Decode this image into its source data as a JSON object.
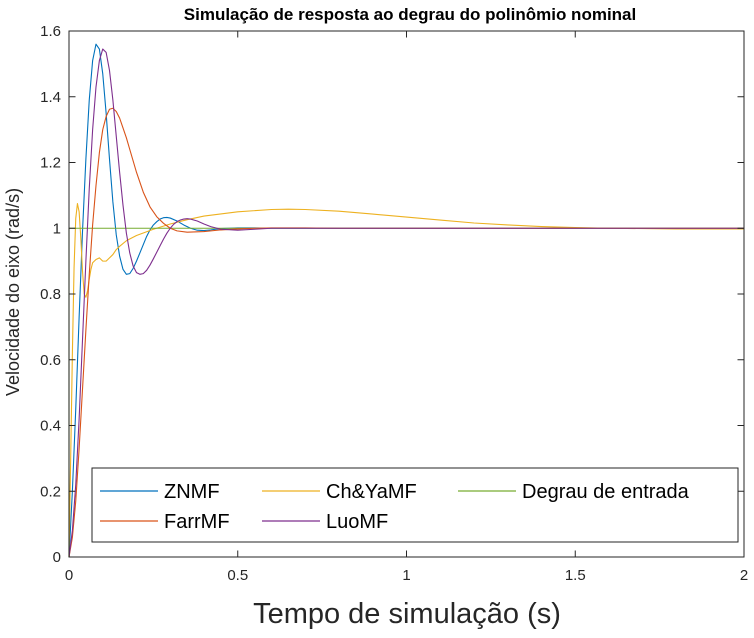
{
  "chart_data": {
    "type": "line",
    "title": "Simulação de resposta ao degrau do polinômio nominal",
    "xlabel": "Tempo de simulação (s)",
    "ylabel": "Velocidade do eixo (rad/s)",
    "xlim": [
      0,
      2
    ],
    "ylim": [
      0,
      1.6
    ],
    "xticks": [
      0,
      0.5,
      1,
      1.5,
      2
    ],
    "xtick_labels": [
      "0",
      "0.5",
      "1",
      "1.5",
      "2"
    ],
    "yticks": [
      0,
      0.2,
      0.4,
      0.6,
      0.8,
      1,
      1.2,
      1.4,
      1.6
    ],
    "ytick_labels": [
      "0",
      "0.2",
      "0.4",
      "0.6",
      "0.8",
      "1",
      "1.2",
      "1.4",
      "1.6"
    ],
    "grid": false,
    "legend_position": "bottom",
    "series": [
      {
        "name": "ZNMF",
        "color": "#0072BD",
        "x": [
          0,
          0.01,
          0.02,
          0.03,
          0.04,
          0.05,
          0.06,
          0.07,
          0.08,
          0.09,
          0.1,
          0.11,
          0.12,
          0.13,
          0.14,
          0.15,
          0.16,
          0.17,
          0.18,
          0.19,
          0.2,
          0.21,
          0.22,
          0.23,
          0.24,
          0.25,
          0.26,
          0.27,
          0.28,
          0.29,
          0.3,
          0.32,
          0.34,
          0.36,
          0.38,
          0.4,
          0.42,
          0.45,
          0.5,
          0.55,
          0.6,
          0.7,
          0.8,
          1.0,
          1.5,
          2.0
        ],
        "y": [
          0,
          0.2,
          0.45,
          0.73,
          0.99,
          1.21,
          1.39,
          1.51,
          1.56,
          1.545,
          1.47,
          1.35,
          1.21,
          1.08,
          0.98,
          0.915,
          0.875,
          0.86,
          0.862,
          0.878,
          0.9,
          0.925,
          0.95,
          0.975,
          0.995,
          1.01,
          1.02,
          1.028,
          1.032,
          1.033,
          1.031,
          1.022,
          1.01,
          1.0,
          0.994,
          0.993,
          0.995,
          0.999,
          1.001,
          1.001,
          1.0,
          1.0,
          1.0,
          1.0,
          1.0,
          1.0
        ]
      },
      {
        "name": "Ch&YaMF",
        "color": "#EDB120",
        "x": [
          0,
          0.005,
          0.01,
          0.015,
          0.02,
          0.025,
          0.03,
          0.035,
          0.04,
          0.045,
          0.05,
          0.055,
          0.06,
          0.065,
          0.07,
          0.08,
          0.09,
          0.1,
          0.11,
          0.12,
          0.13,
          0.14,
          0.15,
          0.17,
          0.2,
          0.25,
          0.3,
          0.35,
          0.4,
          0.5,
          0.6,
          0.65,
          0.7,
          0.8,
          0.9,
          1.0,
          1.1,
          1.2,
          1.3,
          1.4,
          1.5,
          1.6,
          1.8,
          2.0
        ],
        "y": [
          0,
          0.3,
          0.62,
          0.88,
          1.03,
          1.075,
          1.05,
          0.97,
          0.87,
          0.8,
          0.79,
          0.81,
          0.845,
          0.875,
          0.895,
          0.905,
          0.91,
          0.9,
          0.9,
          0.91,
          0.92,
          0.935,
          0.945,
          0.962,
          0.978,
          0.997,
          1.013,
          1.026,
          1.037,
          1.05,
          1.057,
          1.058,
          1.057,
          1.052,
          1.043,
          1.034,
          1.025,
          1.016,
          1.01,
          1.005,
          1.002,
          1.0,
          0.998,
          0.998
        ]
      },
      {
        "name": "Degrau de entrada",
        "color": "#77AC30",
        "x": [
          0,
          0.0,
          2.0
        ],
        "y": [
          0,
          1.0,
          1.0
        ]
      },
      {
        "name": "FarrMF",
        "color": "#D95319",
        "x": [
          0,
          0.01,
          0.02,
          0.03,
          0.04,
          0.05,
          0.06,
          0.07,
          0.08,
          0.09,
          0.1,
          0.11,
          0.12,
          0.13,
          0.14,
          0.15,
          0.16,
          0.17,
          0.18,
          0.19,
          0.2,
          0.22,
          0.24,
          0.26,
          0.28,
          0.3,
          0.32,
          0.35,
          0.4,
          0.45,
          0.5,
          0.55,
          0.6,
          0.7,
          0.8,
          1.0,
          1.5,
          2.0
        ],
        "y": [
          0,
          0.06,
          0.17,
          0.33,
          0.51,
          0.69,
          0.86,
          1.01,
          1.13,
          1.23,
          1.3,
          1.34,
          1.362,
          1.365,
          1.355,
          1.335,
          1.305,
          1.275,
          1.24,
          1.205,
          1.17,
          1.11,
          1.065,
          1.035,
          1.015,
          1.0,
          0.992,
          0.988,
          0.99,
          0.995,
          0.998,
          1.0,
          1.001,
          1.001,
          1.0,
          1.0,
          1.0,
          1.0
        ]
      },
      {
        "name": "LuoMF",
        "color": "#7E2F8E",
        "x": [
          0,
          0.01,
          0.02,
          0.03,
          0.04,
          0.05,
          0.06,
          0.07,
          0.08,
          0.09,
          0.1,
          0.11,
          0.12,
          0.13,
          0.14,
          0.15,
          0.16,
          0.17,
          0.18,
          0.19,
          0.2,
          0.21,
          0.22,
          0.23,
          0.24,
          0.25,
          0.26,
          0.27,
          0.28,
          0.29,
          0.3,
          0.31,
          0.32,
          0.33,
          0.34,
          0.35,
          0.36,
          0.38,
          0.4,
          0.42,
          0.45,
          0.5,
          0.55,
          0.6,
          0.7,
          0.8,
          1.0,
          1.5,
          2.0
        ],
        "y": [
          0,
          0.08,
          0.22,
          0.42,
          0.66,
          0.9,
          1.12,
          1.3,
          1.43,
          1.51,
          1.545,
          1.535,
          1.48,
          1.39,
          1.28,
          1.17,
          1.07,
          0.985,
          0.925,
          0.885,
          0.865,
          0.86,
          0.862,
          0.872,
          0.888,
          0.907,
          0.927,
          0.947,
          0.967,
          0.985,
          1.0,
          1.012,
          1.02,
          1.025,
          1.028,
          1.029,
          1.028,
          1.022,
          1.013,
          1.005,
          0.997,
          0.994,
          0.997,
          1.0,
          1.0,
          1.0,
          1.0,
          1.0,
          1.0
        ]
      }
    ]
  }
}
